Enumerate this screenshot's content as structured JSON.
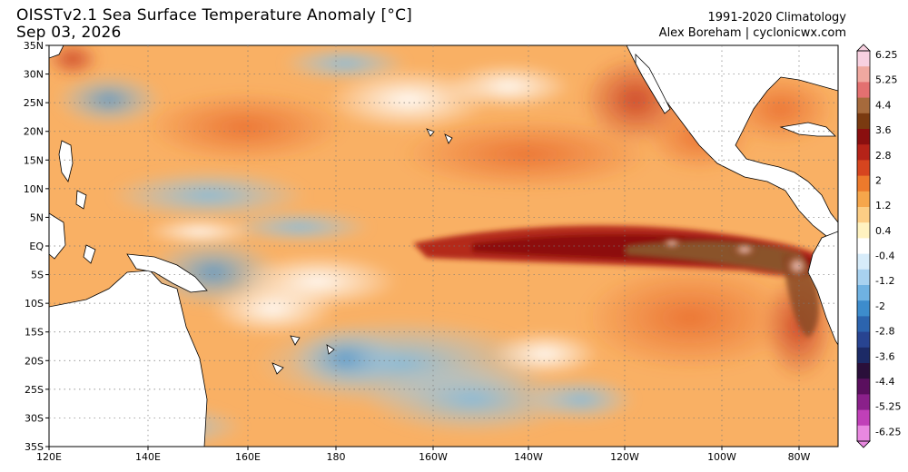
{
  "header": {
    "title_line1": "OISSTv2.1 Sea Surface Temperature Anomaly [°C]",
    "title_line2": "Sep 03, 2026",
    "climatology": "1991-2020 Climatology",
    "credit": "Alex Boreham | cyclonicwx.com"
  },
  "axes": {
    "lat_labels": [
      "35N",
      "30N",
      "25N",
      "20N",
      "15N",
      "10N",
      "5N",
      "EQ",
      "5S",
      "10S",
      "15S",
      "20S",
      "25S",
      "30S",
      "35S"
    ],
    "lon_labels": [
      "120E",
      "140E",
      "160E",
      "180",
      "160W",
      "140W",
      "120W",
      "100W",
      "80W"
    ]
  },
  "colorbar": {
    "labels": [
      "6.25",
      "5.25",
      "4.4",
      "3.6",
      "2.8",
      "2",
      "1.2",
      "0.4",
      "-0.4",
      "-1.2",
      "-2",
      "-2.8",
      "-3.6",
      "-4.4",
      "-5.25",
      "-6.25"
    ],
    "colors": [
      "#f8d0e0",
      "#f0a8a0",
      "#e37070",
      "#a66a3c",
      "#7a3a10",
      "#8a0f0f",
      "#b52318",
      "#d6451f",
      "#ec7a2c",
      "#f6a64b",
      "#fccd84",
      "#fff2c0",
      "#ffffff",
      "#d7ecfa",
      "#a8d2f0",
      "#6fb2e2",
      "#3d8ccc",
      "#2c64ae",
      "#284491",
      "#1c2a66",
      "#2a0f3a",
      "#5a0f5e",
      "#8a208a",
      "#c040b8",
      "#e888e0"
    ]
  },
  "map": {
    "ocean_base_color": "#fbb868"
  }
}
